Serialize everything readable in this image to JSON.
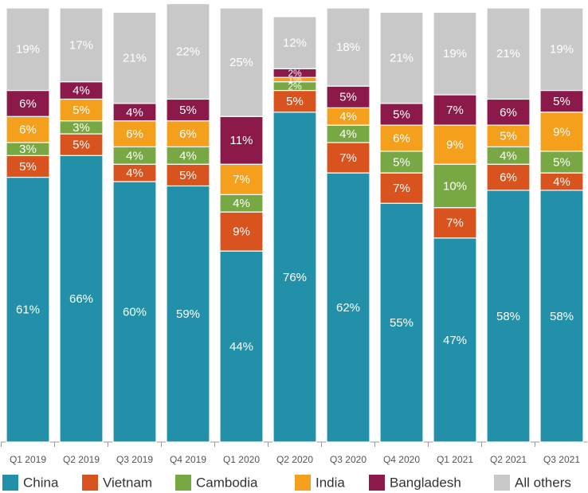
{
  "chart_data": {
    "type": "stacked-bar",
    "categories": [
      "Q1 2019",
      "Q2 2019",
      "Q3 2019",
      "Q4 2019",
      "Q1 2020",
      "Q2 2020",
      "Q3 2020",
      "Q4 2020",
      "Q1 2021",
      "Q2 2021",
      "Q3 2021"
    ],
    "series": [
      {
        "name": "China",
        "color": "#2190a8",
        "values": [
          61,
          66,
          60,
          59,
          44,
          76,
          62,
          55,
          47,
          58,
          58
        ],
        "value_labels": [
          "61%",
          "66%",
          "60%",
          "59%",
          "44%",
          "76%",
          "62%",
          "55%",
          "47%",
          "58%",
          "58%"
        ]
      },
      {
        "name": "Vietnam",
        "color": "#d9531e",
        "values": [
          5,
          5,
          4,
          5,
          9,
          5,
          7,
          7,
          7,
          6,
          4
        ],
        "value_labels": [
          "5%",
          "5%",
          "4%",
          "5%",
          "9%",
          "5%",
          "7%",
          "7%",
          "7%",
          "6%",
          "4%"
        ]
      },
      {
        "name": "Cambodia",
        "color": "#77a843",
        "values": [
          3,
          3,
          4,
          4,
          4,
          2,
          4,
          5,
          10,
          4,
          5
        ],
        "value_labels": [
          "3%",
          "3%",
          "4%",
          "4%",
          "4%",
          "2%",
          "4%",
          "5%",
          "10%",
          "4%",
          "5%"
        ]
      },
      {
        "name": "India",
        "color": "#f5a01d",
        "values": [
          6,
          5,
          6,
          6,
          7,
          1,
          4,
          6,
          9,
          5,
          9
        ],
        "value_labels": [
          "6%",
          "5%",
          "6%",
          "6%",
          "7%",
          "1%",
          "4%",
          "6%",
          "9%",
          "5%",
          "9%"
        ]
      },
      {
        "name": "Bangladesh",
        "color": "#8b1a4a",
        "values": [
          6,
          4,
          4,
          5,
          11,
          2,
          5,
          5,
          7,
          6,
          5
        ],
        "value_labels": [
          "6%",
          "4%",
          "4%",
          "5%",
          "11%",
          "2%",
          "5%",
          "5%",
          "7%",
          "6%",
          "5%"
        ]
      },
      {
        "name": "All others",
        "color": "#c8c8c8",
        "values": [
          19,
          17,
          21,
          22,
          25,
          12,
          18,
          21,
          19,
          21,
          19
        ],
        "value_labels": [
          "19%",
          "17%",
          "21%",
          "22%",
          "25%",
          "12%",
          "18%",
          "21%",
          "19%",
          "21%",
          "19%"
        ]
      }
    ]
  }
}
